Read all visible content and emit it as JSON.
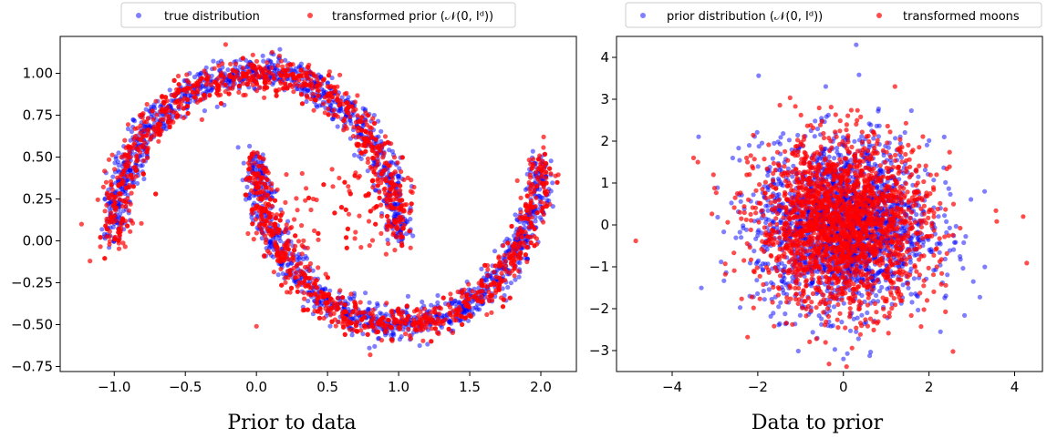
{
  "chart_data": [
    {
      "type": "scatter",
      "title": "",
      "caption": "Prior to data",
      "xlabel": "",
      "ylabel": "",
      "xlim": [
        -1.38,
        2.25
      ],
      "ylim": [
        -0.78,
        1.22
      ],
      "xticks": [
        -1.0,
        -0.5,
        0.0,
        0.5,
        1.0,
        1.5,
        2.0
      ],
      "xtick_labels": [
        "−1.0",
        "−0.5",
        "0.0",
        "0.5",
        "1.0",
        "1.5",
        "2.0"
      ],
      "yticks": [
        -0.75,
        -0.5,
        -0.25,
        0.0,
        0.25,
        0.5,
        0.75,
        1.0
      ],
      "ytick_labels": [
        "−0.75",
        "−0.50",
        "−0.25",
        "0.00",
        "0.25",
        "0.50",
        "0.75",
        "1.00"
      ],
      "grid": false,
      "legend": {
        "placement": "above",
        "ncol": 2
      },
      "series": [
        {
          "name": "true distribution",
          "color": "#0000ff",
          "alpha": 0.5,
          "kind": "two-moons",
          "n_points": 2000,
          "noise": 0.05,
          "points_sample": [
            [
              -1.0,
              0.02
            ],
            [
              -0.9,
              0.45
            ],
            [
              -0.5,
              0.87
            ],
            [
              0.0,
              1.0
            ],
            [
              0.5,
              0.87
            ],
            [
              0.9,
              0.45
            ],
            [
              1.0,
              0.0
            ],
            [
              0.0,
              0.5
            ],
            [
              0.1,
              0.0
            ],
            [
              0.5,
              -0.37
            ],
            [
              1.0,
              -0.5
            ],
            [
              1.5,
              -0.37
            ],
            [
              1.9,
              0.0
            ],
            [
              2.0,
              0.5
            ]
          ]
        },
        {
          "name": "transformed prior ($\\mathcal{N}(0, I_d)$)",
          "color": "#ff0000",
          "alpha": 0.7,
          "kind": "two-moons-with-bridge",
          "n_points": 2000,
          "noise": 0.05,
          "points_sample": [
            [
              -1.23,
              0.1
            ],
            [
              -1.17,
              -0.12
            ],
            [
              -0.95,
              0.5
            ],
            [
              0.0,
              1.0
            ],
            [
              0.95,
              0.2
            ],
            [
              0.0,
              -0.51
            ],
            [
              0.4,
              0.25
            ],
            [
              0.6,
              0.2
            ],
            [
              0.8,
              -0.68
            ],
            [
              2.02,
              0.62
            ]
          ]
        }
      ]
    },
    {
      "type": "scatter",
      "title": "",
      "caption": "Data to prior",
      "xlabel": "",
      "ylabel": "",
      "xlim": [
        -5.3,
        4.65
      ],
      "ylim": [
        -3.5,
        4.5
      ],
      "xticks": [
        -4,
        -2,
        0,
        2,
        4
      ],
      "xtick_labels": [
        "−4",
        "−2",
        "0",
        "2",
        "4"
      ],
      "yticks": [
        -3,
        -2,
        -1,
        0,
        1,
        2,
        3,
        4
      ],
      "ytick_labels": [
        "−3",
        "−2",
        "−1",
        "0",
        "1",
        "2",
        "3",
        "4"
      ],
      "grid": false,
      "legend": {
        "placement": "above",
        "ncol": 2
      },
      "series": [
        {
          "name": "prior distribution ($\\mathcal{N}(0, I_d)$)",
          "color": "#0000ff",
          "alpha": 0.5,
          "kind": "gaussian",
          "n_points": 2000,
          "mean": [
            0,
            0
          ],
          "std": [
            1,
            1
          ],
          "points_sample": [
            [
              0.3,
              4.3
            ],
            [
              3.3,
              0.8
            ],
            [
              -2.2,
              1.9
            ],
            [
              0.0,
              -3.2
            ]
          ]
        },
        {
          "name": "transformed moons",
          "color": "#ff0000",
          "alpha": 0.7,
          "kind": "gaussian",
          "n_points": 2000,
          "mean": [
            0,
            0
          ],
          "std": [
            1,
            1
          ],
          "points_sample": [
            [
              -4.85,
              -0.38
            ],
            [
              4.2,
              0.2
            ],
            [
              -3.4,
              1.5
            ],
            [
              -3.5,
              1.6
            ]
          ]
        }
      ]
    }
  ]
}
